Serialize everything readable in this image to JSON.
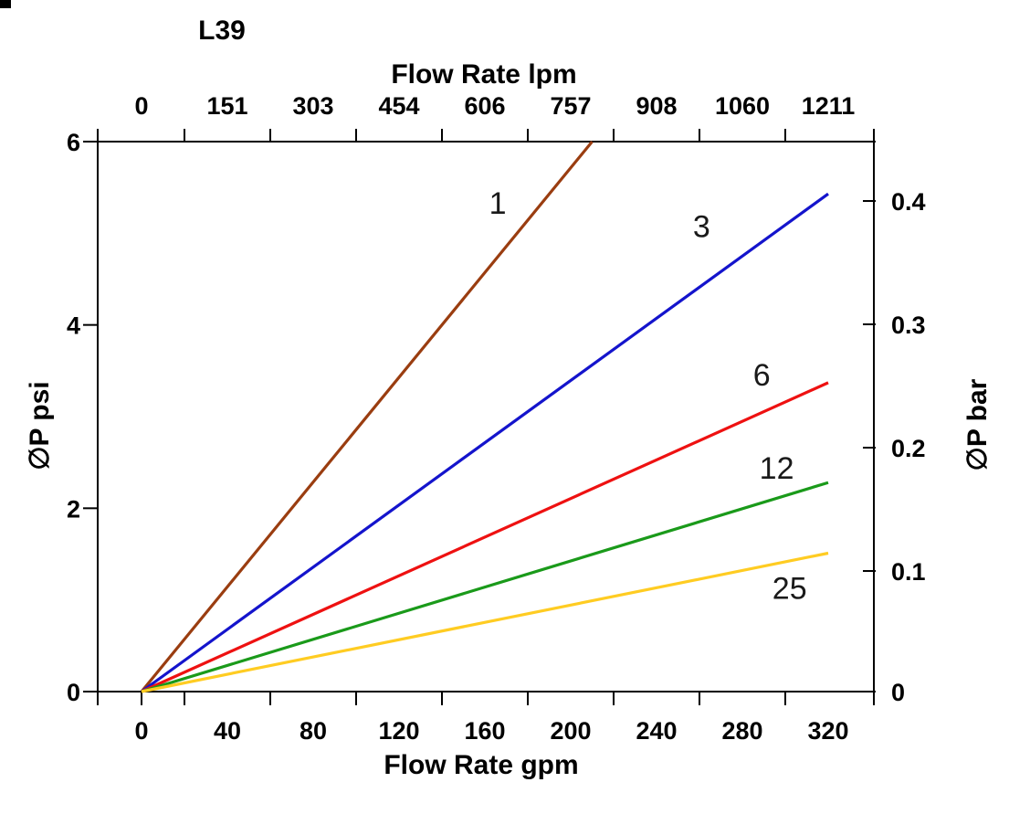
{
  "chart_data": {
    "type": "line",
    "title": "L39",
    "top_axis": {
      "label": "Flow Rate lpm",
      "tick_labels": [
        "0",
        "151",
        "303",
        "454",
        "606",
        "757",
        "908",
        "1060",
        "1211"
      ],
      "tick_label_positions_gpm": [
        0,
        40,
        80,
        120,
        160,
        200,
        240,
        280,
        320
      ],
      "tick_marks_gpm": [
        20,
        60,
        100,
        140,
        180,
        220,
        260,
        300
      ]
    },
    "bottom_axis": {
      "label": "Flow Rate gpm",
      "tick_labels": [
        "0",
        "40",
        "80",
        "120",
        "160",
        "200",
        "240",
        "280",
        "320"
      ],
      "tick_label_positions_gpm": [
        0,
        40,
        80,
        120,
        160,
        200,
        240,
        280,
        320
      ],
      "tick_marks_gpm": [
        0,
        20,
        60,
        100,
        140,
        180,
        220,
        260,
        300
      ]
    },
    "left_axis": {
      "label": "∅P psi",
      "tick_labels": [
        "0",
        "2",
        "4",
        "6"
      ],
      "tick_values_psi": [
        0,
        2,
        4,
        6
      ],
      "range_psi": [
        0,
        6
      ]
    },
    "right_axis": {
      "label": "∅P bar",
      "tick_labels": [
        "0",
        "0.1",
        "0.2",
        "0.3",
        "0.4"
      ],
      "tick_values_bar": [
        0,
        0.1,
        0.2,
        0.3,
        0.4
      ]
    },
    "x_range_gpm": [
      0,
      320
    ],
    "grid": false,
    "legend": "inline-labels-on-lines",
    "series": [
      {
        "label": "1",
        "color": "#9a3d10",
        "points_gpm_psi": [
          [
            0,
            0
          ],
          [
            210,
            6.0
          ]
        ],
        "label_pos_gpm_psi": [
          166,
          5.33
        ]
      },
      {
        "label": "3",
        "color": "#1414cc",
        "points_gpm_psi": [
          [
            0,
            0
          ],
          [
            320,
            5.43
          ]
        ],
        "label_pos_gpm_psi": [
          261,
          5.08
        ]
      },
      {
        "label": "6",
        "color": "#ee1111",
        "points_gpm_psi": [
          [
            0,
            0
          ],
          [
            320,
            3.37
          ]
        ],
        "label_pos_gpm_psi": [
          289,
          3.46
        ]
      },
      {
        "label": "12",
        "color": "#1a9a1a",
        "points_gpm_psi": [
          [
            0,
            0
          ],
          [
            320,
            2.28
          ]
        ],
        "label_pos_gpm_psi": [
          296,
          2.44
        ]
      },
      {
        "label": "25",
        "color": "#ffcc22",
        "points_gpm_psi": [
          [
            0,
            0
          ],
          [
            320,
            1.51
          ]
        ],
        "label_pos_gpm_psi": [
          302,
          1.13
        ]
      }
    ]
  }
}
